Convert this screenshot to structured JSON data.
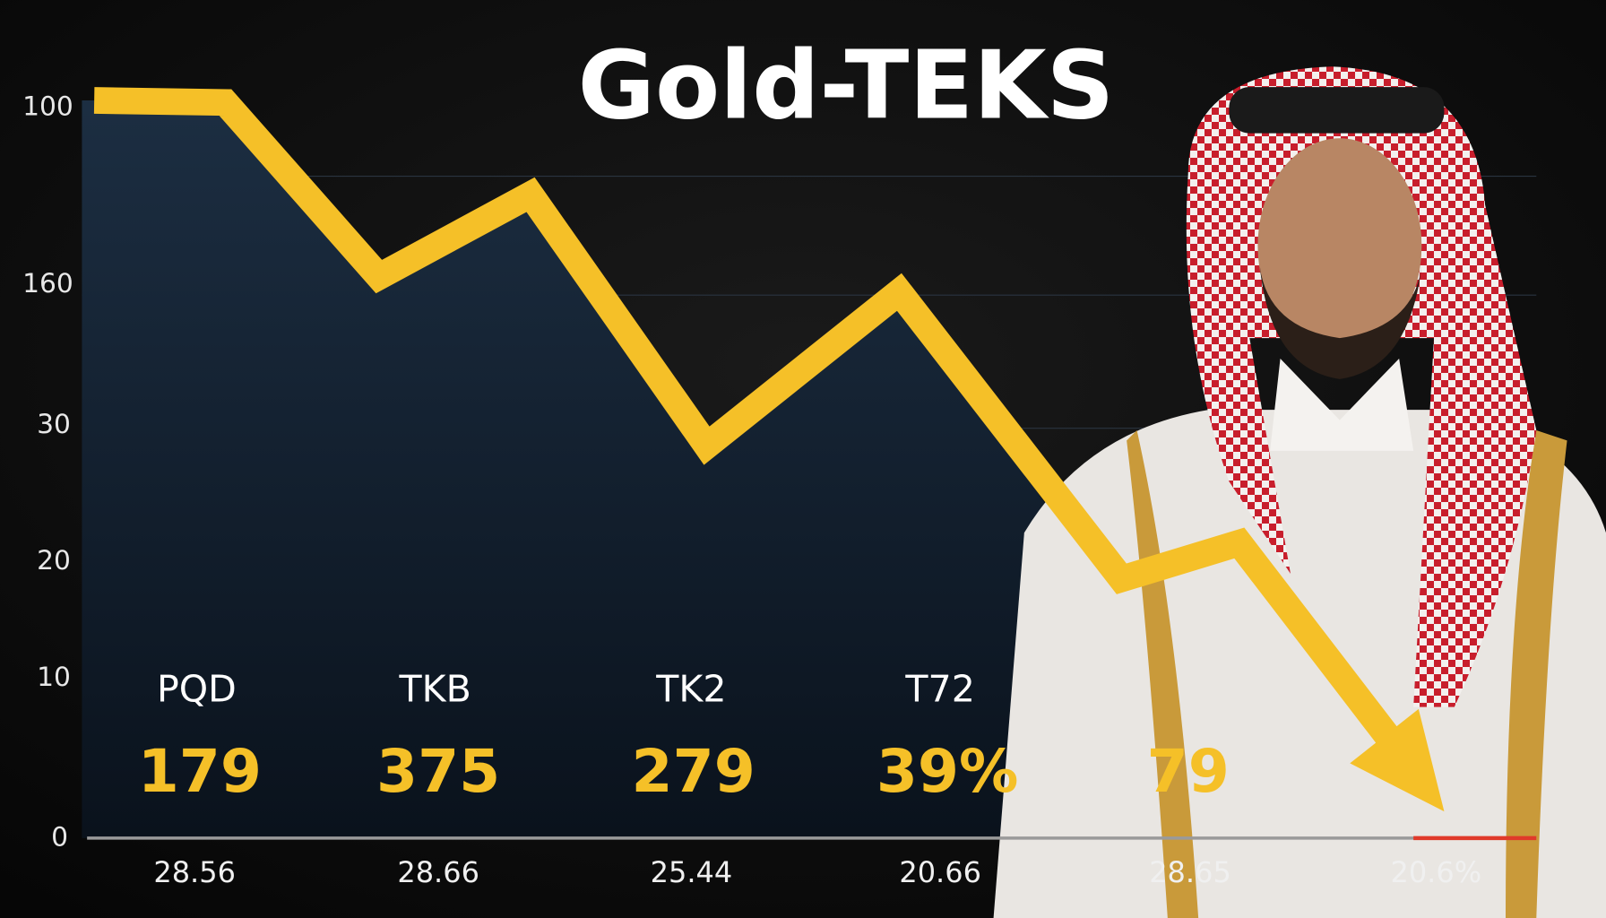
{
  "title": "Gold-TEKS",
  "axis_labels": [
    "100",
    "160",
    "30",
    "20",
    "10",
    "0"
  ],
  "stats": [
    {
      "label": "PQD",
      "value": "179"
    },
    {
      "label": "TKB",
      "value": "375"
    },
    {
      "label": "TK2",
      "value": "279"
    },
    {
      "label": "T72",
      "value": "39%"
    },
    {
      "label": null,
      "value": "79"
    }
  ],
  "bottom_labels": [
    "28.56",
    "28.66",
    "25.44",
    "20.66",
    "28.65",
    "20.6%"
  ]
}
